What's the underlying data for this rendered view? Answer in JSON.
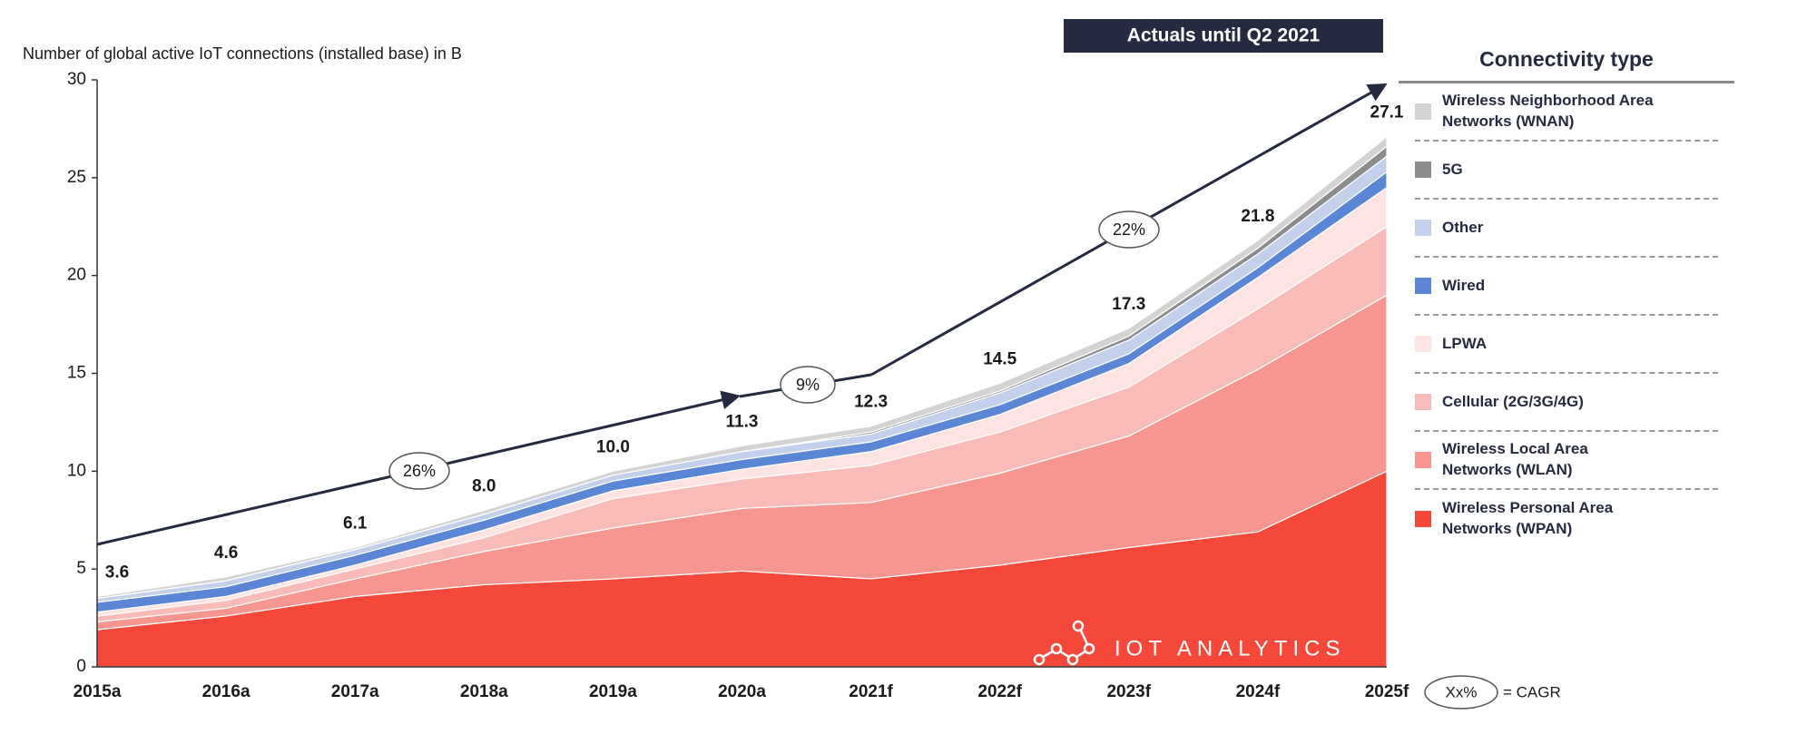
{
  "chart_data": {
    "type": "stacked_area",
    "y_label": "Number of global active IoT connections (installed base) in B",
    "categories": [
      "2015a",
      "2016a",
      "2017a",
      "2018a",
      "2019a",
      "2020a",
      "2021f",
      "2022f",
      "2023f",
      "2024f",
      "2025f"
    ],
    "series": [
      {
        "name": "Wireless Personal Area Networks (WPAN)",
        "color": "#f5483b",
        "values": [
          1.9,
          2.6,
          3.6,
          4.2,
          4.5,
          4.9,
          4.5,
          5.2,
          6.1,
          6.9,
          10.0
        ]
      },
      {
        "name": "Wireless Local Area Networks (WLAN)",
        "color": "#f79690",
        "values": [
          0.4,
          0.4,
          0.9,
          1.7,
          2.6,
          3.2,
          3.9,
          4.7,
          5.7,
          8.3,
          9.0
        ]
      },
      {
        "name": "Cellular (2G/3G/4G)",
        "color": "#f9bbb7",
        "values": [
          0.3,
          0.4,
          0.5,
          0.7,
          1.5,
          1.5,
          1.9,
          2.1,
          2.5,
          3.1,
          3.5
        ]
      },
      {
        "name": "LPWA",
        "color": "#fde4e2",
        "values": [
          0.2,
          0.2,
          0.2,
          0.4,
          0.4,
          0.5,
          0.7,
          0.9,
          1.2,
          1.6,
          2.0
        ]
      },
      {
        "name": "Wired",
        "color": "#5b86d6",
        "values": [
          0.5,
          0.5,
          0.5,
          0.5,
          0.5,
          0.5,
          0.5,
          0.5,
          0.5,
          0.5,
          0.8
        ]
      },
      {
        "name": "Other",
        "color": "#c3d0ec",
        "values": [
          0.2,
          0.3,
          0.3,
          0.3,
          0.3,
          0.4,
          0.4,
          0.6,
          0.7,
          0.7,
          0.8
        ]
      },
      {
        "name": "5G",
        "color": "#8c8c8c",
        "values": [
          0,
          0,
          0,
          0,
          0,
          0,
          0.1,
          0.1,
          0.2,
          0.3,
          0.5
        ]
      },
      {
        "name": "Wireless Neighborhood Area Networks (WNAN)",
        "color": "#d3d3d3",
        "values": [
          0.1,
          0.2,
          0.1,
          0.2,
          0.2,
          0.3,
          0.3,
          0.4,
          0.4,
          0.4,
          0.5
        ]
      }
    ],
    "totals": {
      "values": [
        3.6,
        4.6,
        6.1,
        8.0,
        10.0,
        11.3,
        12.3,
        14.5,
        17.3,
        21.8,
        27.1
      ],
      "value_labels": [
        "3.6",
        "4.6",
        "6.1",
        "8.0",
        "10.0",
        "11.3",
        "12.3",
        "14.5",
        "17.3",
        "21.8",
        "27.1"
      ]
    },
    "ylim": [
      0,
      30
    ],
    "yticks": [
      0,
      5,
      10,
      15,
      20,
      25,
      30
    ],
    "legend_title": "Connectivity type",
    "actuals_note": "Actuals until Q2 2021",
    "cagr_annotations": [
      "26%",
      "9%",
      "22%"
    ],
    "cagr_key": [
      "Xx%",
      "= CAGR"
    ],
    "brand": "IOT ANALYTICS"
  }
}
